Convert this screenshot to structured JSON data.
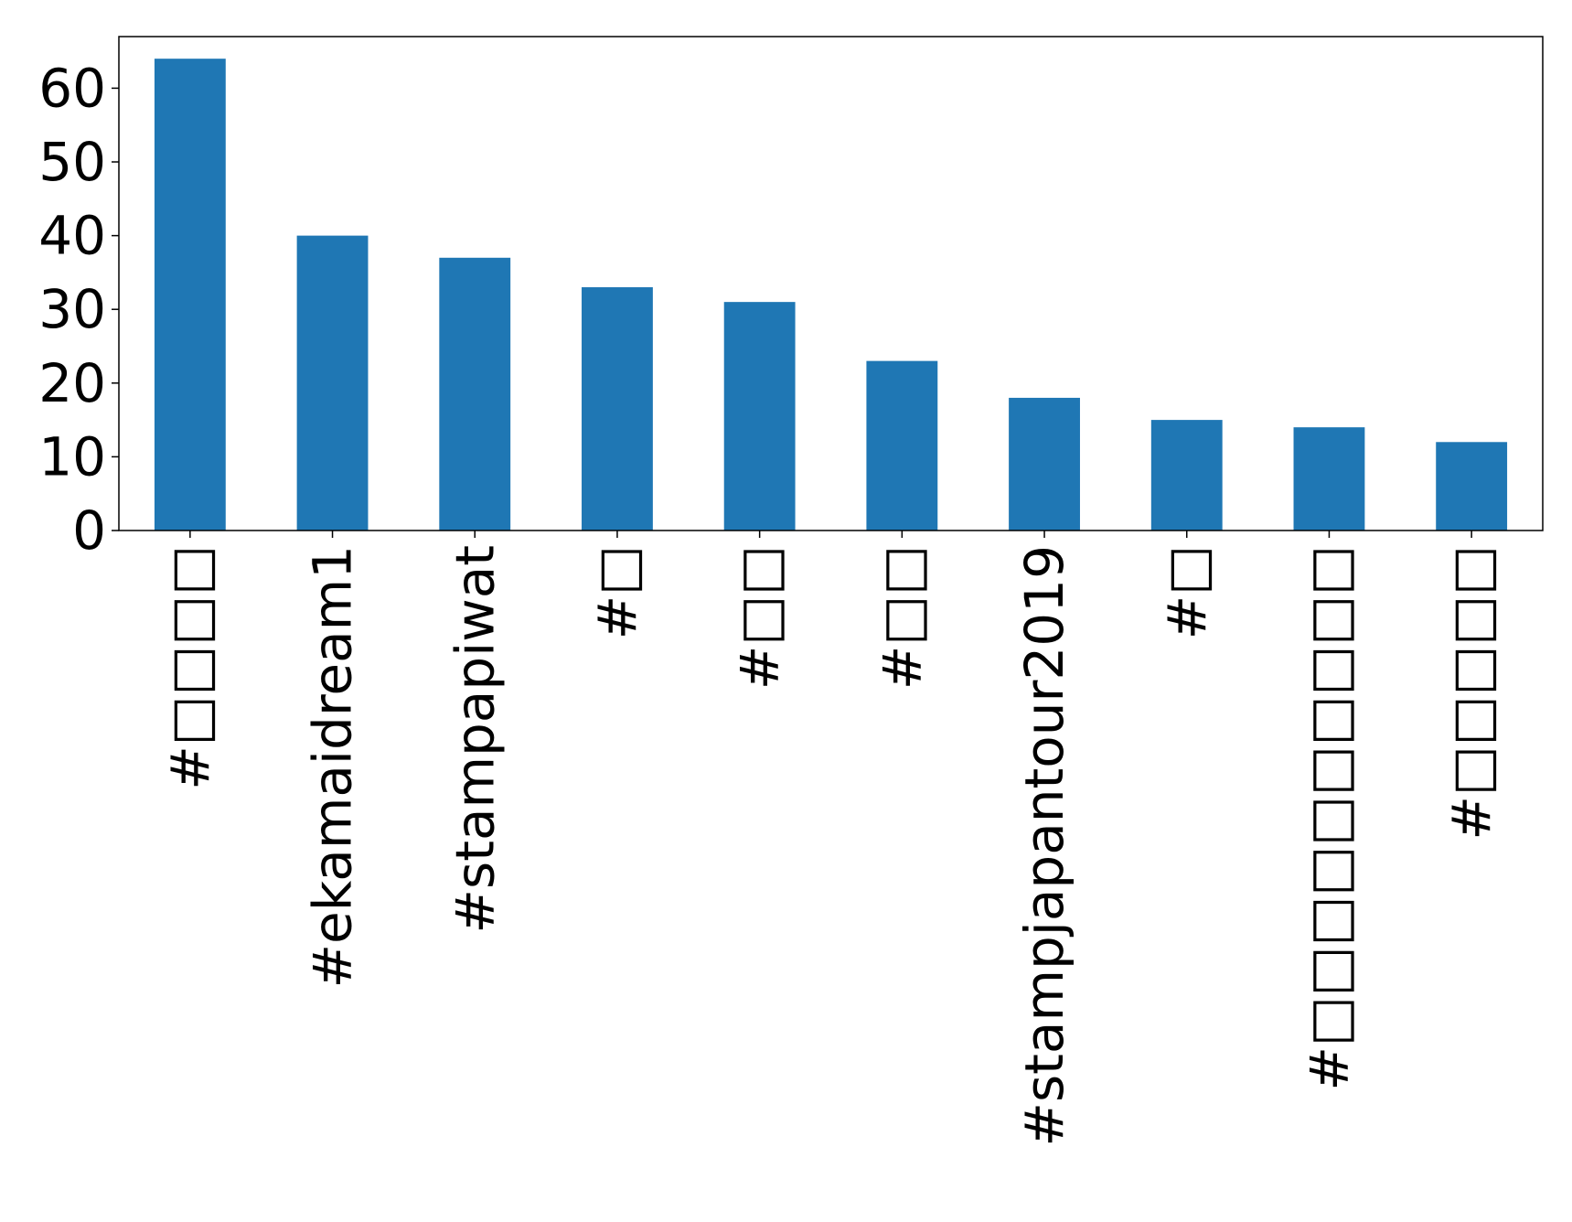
{
  "chart_data": {
    "type": "bar",
    "categories": [
      "#□□□□",
      "#ekamaidream1",
      "#stampapiwat",
      "#□",
      "#□□",
      "#□□",
      "#stampjapantour2019",
      "#□",
      "#□□□□□□□□□□",
      "#□□□□□"
    ],
    "values": [
      64,
      40,
      37,
      33,
      31,
      23,
      18,
      15,
      14,
      12
    ],
    "title": "",
    "xlabel": "",
    "ylabel": "",
    "ylim": [
      0,
      67
    ],
    "yticks": [
      0,
      10,
      20,
      30,
      40,
      50,
      60
    ],
    "ytick_labels": [
      "0",
      "10",
      "20",
      "30",
      "40",
      "50",
      "60"
    ],
    "grid": false,
    "legend": "none",
    "bar_color": "#1f77b4"
  }
}
